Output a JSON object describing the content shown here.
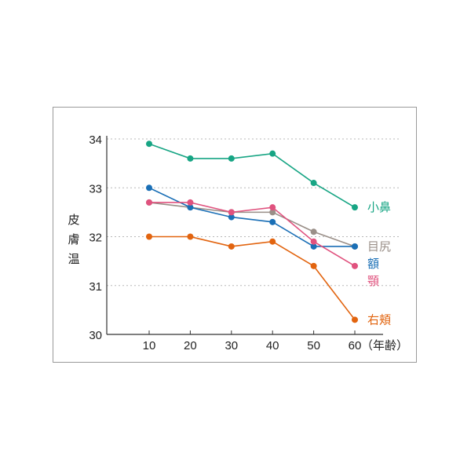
{
  "chart_data": {
    "type": "line",
    "title": "",
    "xlabel": "（年齢）",
    "ylabel": "皮膚温",
    "ylim": [
      30,
      34
    ],
    "xlim": [
      0,
      62
    ],
    "grid": true,
    "y_ticks": [
      30,
      31,
      32,
      33,
      34
    ],
    "x_ticks": [
      10,
      20,
      30,
      40,
      50,
      60
    ],
    "x": [
      10,
      20,
      30,
      40,
      50,
      60
    ],
    "series": [
      {
        "name": "小鼻",
        "color": "#17a584",
        "values": [
          33.9,
          33.6,
          33.6,
          33.7,
          33.1,
          32.6
        ]
      },
      {
        "name": "目尻",
        "color": "#9a8f88",
        "values": [
          32.7,
          32.6,
          32.5,
          32.5,
          32.1,
          31.8
        ]
      },
      {
        "name": "額",
        "color": "#1a6fb6",
        "values": [
          33.0,
          32.6,
          32.4,
          32.3,
          31.8,
          31.8
        ]
      },
      {
        "name": "顎",
        "color": "#e0527e",
        "values": [
          32.7,
          32.7,
          32.5,
          32.6,
          31.9,
          31.4
        ]
      },
      {
        "name": "右頬",
        "color": "#e2640f",
        "values": [
          32.0,
          32.0,
          31.8,
          31.9,
          31.4,
          30.3
        ]
      }
    ]
  }
}
